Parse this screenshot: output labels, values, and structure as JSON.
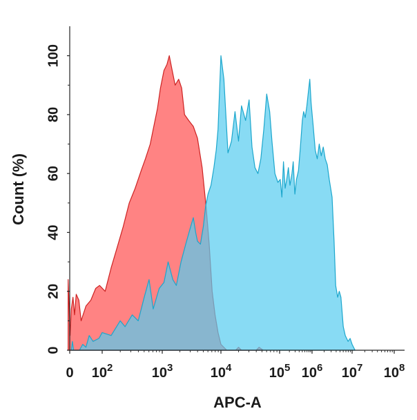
{
  "chart_data": {
    "type": "area",
    "title": "",
    "xlabel": "APC-A",
    "ylabel": "Count  (%)",
    "x_scale": "log-like",
    "xlim": [
      0,
      100000000
    ],
    "ylim": [
      0,
      110
    ],
    "grid": false,
    "legend": "none",
    "x_ticks": [
      {
        "value": 0,
        "base": "0",
        "exp": ""
      },
      {
        "value": 100,
        "base": "10",
        "exp": "2"
      },
      {
        "value": 1000,
        "base": "10",
        "exp": "3"
      },
      {
        "value": 10000,
        "base": "10",
        "exp": "4"
      },
      {
        "value": 100000,
        "base": "10",
        "exp": "5"
      },
      {
        "value": 1000000,
        "base": "10",
        "exp": "6"
      },
      {
        "value": 10000000,
        "base": "10",
        "exp": "7"
      },
      {
        "value": 100000000,
        "base": "10",
        "exp": "8"
      }
    ],
    "y_ticks": [
      0,
      20,
      40,
      60,
      80,
      100
    ],
    "series": [
      {
        "color": "#ff5a5a",
        "stroke": "#cc2222",
        "opacity": 0.75,
        "points": [
          [
            -0.05,
            24
          ],
          [
            0.01,
            5
          ],
          [
            0.05,
            14
          ],
          [
            0.1,
            18
          ],
          [
            0.15,
            12
          ],
          [
            0.2,
            19
          ],
          [
            0.28,
            17
          ],
          [
            0.35,
            10
          ],
          [
            0.5,
            15
          ],
          [
            0.65,
            17
          ],
          [
            0.8,
            21
          ],
          [
            0.92,
            22
          ],
          [
            1.05,
            20
          ],
          [
            1.15,
            28
          ],
          [
            1.25,
            35
          ],
          [
            1.35,
            42
          ],
          [
            1.45,
            50
          ],
          [
            1.55,
            55
          ],
          [
            1.65,
            61
          ],
          [
            1.72,
            65
          ],
          [
            1.8,
            70
          ],
          [
            1.85,
            75
          ],
          [
            1.92,
            82
          ],
          [
            1.97,
            89
          ],
          [
            2.03,
            95
          ],
          [
            2.08,
            97
          ],
          [
            2.12,
            100
          ],
          [
            2.17,
            95
          ],
          [
            2.22,
            90
          ],
          [
            2.28,
            92
          ],
          [
            2.33,
            89
          ],
          [
            2.38,
            80
          ],
          [
            2.45,
            78
          ],
          [
            2.53,
            76
          ],
          [
            2.6,
            72
          ],
          [
            2.68,
            62
          ],
          [
            2.75,
            48
          ],
          [
            2.8,
            36
          ],
          [
            2.85,
            20
          ],
          [
            2.9,
            12
          ],
          [
            2.95,
            6
          ],
          [
            3.0,
            2
          ],
          [
            3.1,
            0
          ],
          [
            3.25,
            0
          ],
          [
            3.3,
            1
          ],
          [
            3.35,
            0
          ],
          [
            3.6,
            0
          ],
          [
            3.65,
            1
          ],
          [
            3.72,
            0
          ]
        ]
      },
      {
        "color": "#55ccf0",
        "stroke": "#1ba6cc",
        "opacity": 0.7,
        "points": [
          [
            0.05,
            0
          ],
          [
            0.08,
            3
          ],
          [
            0.12,
            0
          ],
          [
            0.3,
            0
          ],
          [
            0.4,
            2
          ],
          [
            0.5,
            1
          ],
          [
            0.6,
            5
          ],
          [
            0.72,
            3
          ],
          [
            0.9,
            4
          ],
          [
            1.0,
            6
          ],
          [
            1.15,
            5
          ],
          [
            1.3,
            10
          ],
          [
            1.38,
            8
          ],
          [
            1.5,
            12
          ],
          [
            1.6,
            10
          ],
          [
            1.7,
            18
          ],
          [
            1.78,
            24
          ],
          [
            1.85,
            14
          ],
          [
            1.95,
            21
          ],
          [
            2.03,
            23
          ],
          [
            2.1,
            30
          ],
          [
            2.18,
            24
          ],
          [
            2.24,
            22
          ],
          [
            2.32,
            30
          ],
          [
            2.4,
            36
          ],
          [
            2.47,
            41
          ],
          [
            2.53,
            45
          ],
          [
            2.57,
            40
          ],
          [
            2.6,
            37
          ],
          [
            2.65,
            36
          ],
          [
            2.7,
            42
          ],
          [
            2.74,
            49
          ],
          [
            2.78,
            53
          ],
          [
            2.83,
            56
          ],
          [
            2.88,
            62
          ],
          [
            2.92,
            68
          ],
          [
            2.95,
            75
          ],
          [
            3.0,
            100
          ],
          [
            3.05,
            92
          ],
          [
            3.12,
            67
          ],
          [
            3.18,
            71
          ],
          [
            3.24,
            81
          ],
          [
            3.3,
            71
          ],
          [
            3.35,
            83
          ],
          [
            3.42,
            78
          ],
          [
            3.48,
            85
          ],
          [
            3.53,
            69
          ],
          [
            3.58,
            62
          ],
          [
            3.63,
            60
          ],
          [
            3.68,
            65
          ],
          [
            3.73,
            75
          ],
          [
            3.78,
            87
          ],
          [
            3.83,
            81
          ],
          [
            3.87,
            71
          ],
          [
            3.92,
            60
          ],
          [
            3.97,
            57
          ],
          [
            4.02,
            58
          ],
          [
            4.07,
            52
          ],
          [
            4.12,
            64
          ],
          [
            4.17,
            55
          ],
          [
            4.22,
            58
          ],
          [
            4.27,
            62
          ],
          [
            4.32,
            56
          ],
          [
            4.38,
            60
          ],
          [
            4.42,
            64
          ],
          [
            4.47,
            53
          ],
          [
            4.52,
            58
          ],
          [
            4.58,
            61
          ],
          [
            4.64,
            69
          ],
          [
            4.7,
            78
          ],
          [
            4.74,
            81
          ],
          [
            4.79,
            79
          ],
          [
            4.84,
            83
          ],
          [
            4.89,
            88
          ],
          [
            4.93,
            92
          ],
          [
            4.97,
            84
          ],
          [
            5.03,
            76
          ],
          [
            5.08,
            68
          ],
          [
            5.13,
            65
          ],
          [
            5.18,
            70
          ],
          [
            5.23,
            66
          ],
          [
            5.28,
            69
          ],
          [
            5.33,
            65
          ],
          [
            5.38,
            63
          ],
          [
            5.43,
            58
          ],
          [
            5.5,
            52
          ],
          [
            5.55,
            37
          ],
          [
            5.59,
            22
          ],
          [
            5.64,
            18
          ],
          [
            5.68,
            20
          ],
          [
            5.72,
            18
          ],
          [
            5.78,
            8
          ],
          [
            5.83,
            5
          ],
          [
            5.9,
            3
          ],
          [
            5.95,
            4
          ],
          [
            6.0,
            2
          ],
          [
            6.07,
            0
          ]
        ]
      }
    ]
  }
}
